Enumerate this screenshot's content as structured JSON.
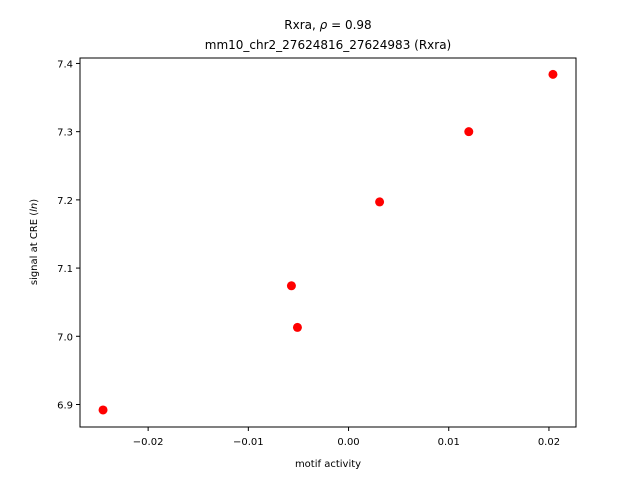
{
  "chart_data": {
    "type": "scatter",
    "title_line1_prefix": "Rxra, ",
    "title_line1_rho": "ρ",
    "title_line1_suffix": " = 0.98",
    "title_line2": "mm10_chr2_27624816_27624983 (Rxra)",
    "xlabel": "motif activity",
    "ylabel_prefix": "signal at CRE (",
    "ylabel_italic": "ln",
    "ylabel_suffix": ")",
    "xlim": [
      -0.0268,
      0.0227
    ],
    "ylim": [
      6.867,
      7.408
    ],
    "xticks": [
      -0.02,
      -0.01,
      0.0,
      0.01,
      0.02
    ],
    "xtick_labels": [
      "−0.02",
      "−0.01",
      "0.00",
      "0.01",
      "0.02"
    ],
    "yticks": [
      6.9,
      7.0,
      7.1,
      7.2,
      7.3,
      7.4
    ],
    "ytick_labels": [
      "6.9",
      "7.0",
      "7.1",
      "7.2",
      "7.3",
      "7.4"
    ],
    "points": [
      {
        "x": -0.0245,
        "y": 6.892
      },
      {
        "x": -0.0057,
        "y": 7.074
      },
      {
        "x": -0.0051,
        "y": 7.013
      },
      {
        "x": 0.0031,
        "y": 7.197
      },
      {
        "x": 0.012,
        "y": 7.3
      },
      {
        "x": 0.0204,
        "y": 7.384
      }
    ],
    "marker_color": "#ff0000",
    "grid": false,
    "legend": "none"
  }
}
